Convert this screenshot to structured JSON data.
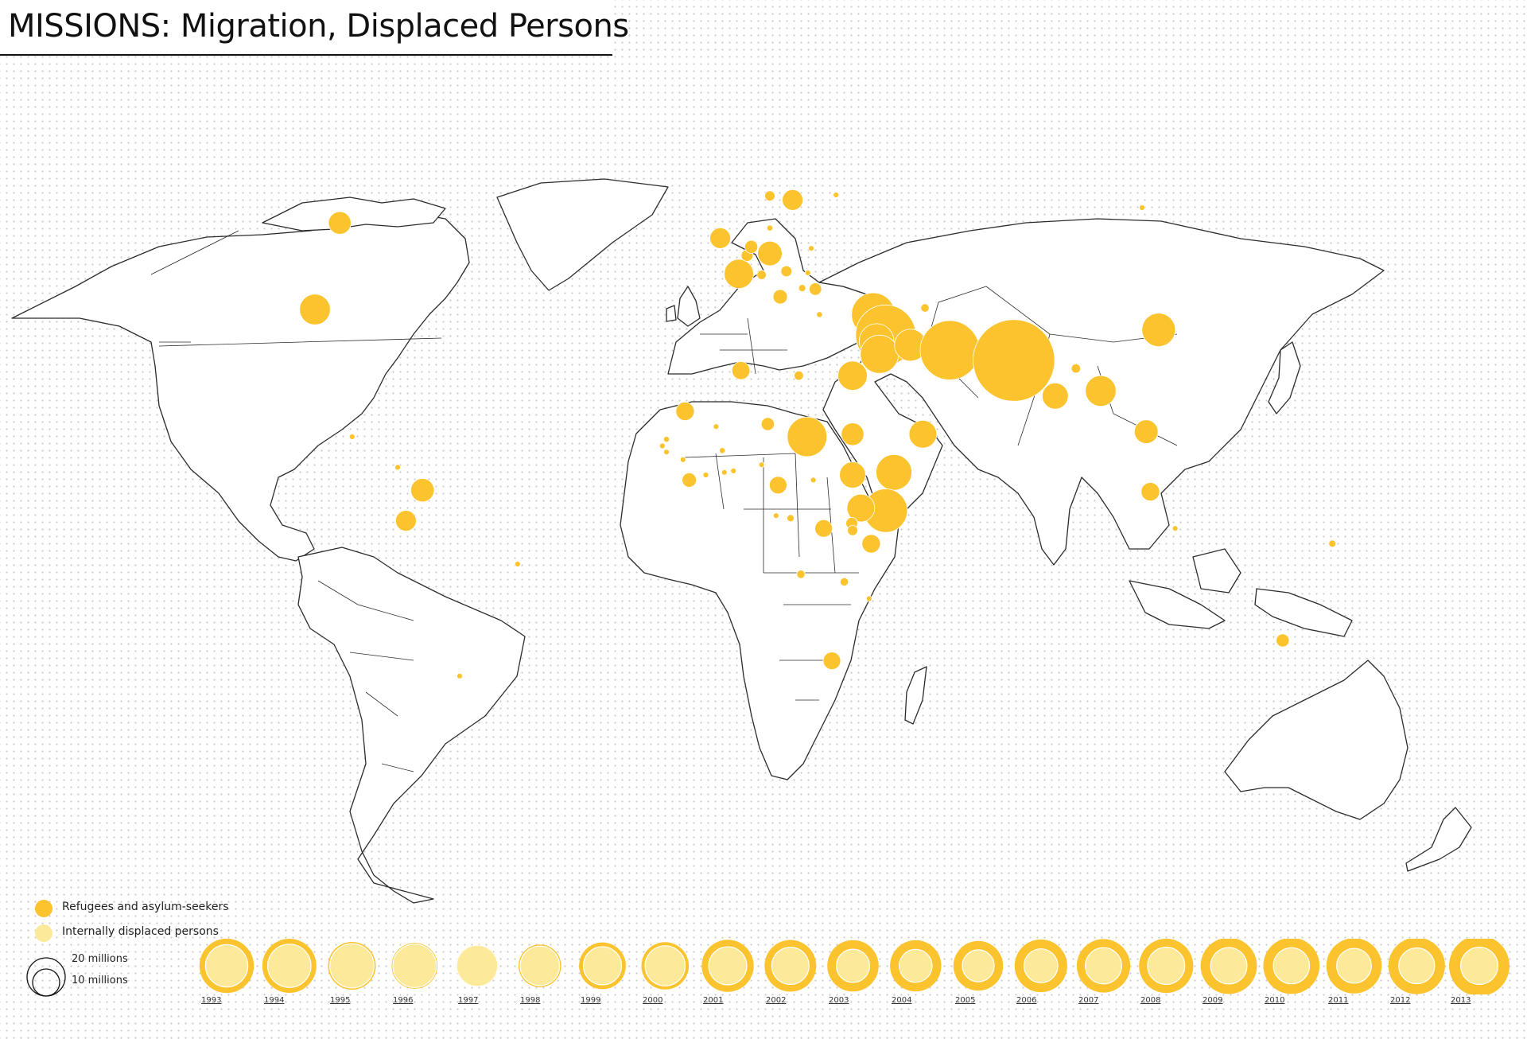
{
  "title": "MISSIONS: Migration, Displaced Persons",
  "colors": {
    "refugees": "#fbc32d",
    "idp": "#fde99a",
    "land": "#ffffff",
    "outline": "#2b2b2b"
  },
  "legend": {
    "refugees_label": "Refugees and asylum-seekers",
    "idp_label": "Internally displaced persons",
    "scale_large": "20 millions",
    "scale_small": "10 millions"
  },
  "country_bubbles": [
    {
      "name": "Canada",
      "lon": -94,
      "lat": 57,
      "value": 0.3
    },
    {
      "name": "United States",
      "lon": -100,
      "lat": 40,
      "value": 0.55
    },
    {
      "name": "Colombia",
      "lon": -74,
      "lat": 4.5,
      "value": 0.32
    },
    {
      "name": "Ecuador",
      "lon": -78,
      "lat": -1.5,
      "value": 0.25
    },
    {
      "name": "Brazil",
      "lon": -51,
      "lat": -10,
      "value": 0.01
    },
    {
      "name": "Argentina",
      "lon": -65,
      "lat": -32,
      "value": 0.01
    },
    {
      "name": "Guatemala",
      "lon": -91,
      "lat": 15,
      "value": 0.01
    },
    {
      "name": "Panama",
      "lon": -80,
      "lat": 9,
      "value": 0.01
    },
    {
      "name": "United Kingdom",
      "lon": -2,
      "lat": 54,
      "value": 0.25
    },
    {
      "name": "France",
      "lon": 2.5,
      "lat": 47,
      "value": 0.5
    },
    {
      "name": "Belgium",
      "lon": 4.5,
      "lat": 50.6,
      "value": 0.08
    },
    {
      "name": "Netherlands",
      "lon": 5.5,
      "lat": 52.3,
      "value": 0.1
    },
    {
      "name": "Germany",
      "lon": 10,
      "lat": 51,
      "value": 0.35
    },
    {
      "name": "Switzerland",
      "lon": 8,
      "lat": 46.8,
      "value": 0.05
    },
    {
      "name": "Austria",
      "lon": 14,
      "lat": 47.5,
      "value": 0.07
    },
    {
      "name": "Italy",
      "lon": 12.5,
      "lat": 42.5,
      "value": 0.12
    },
    {
      "name": "Serbia",
      "lon": 21,
      "lat": 44,
      "value": 0.09
    },
    {
      "name": "Sweden",
      "lon": 15.5,
      "lat": 61.5,
      "value": 0.25
    },
    {
      "name": "Norway",
      "lon": 10,
      "lat": 62.3,
      "value": 0.06
    },
    {
      "name": "Finland",
      "lon": 26,
      "lat": 62.5,
      "value": 0.01
    },
    {
      "name": "Poland",
      "lon": 20,
      "lat": 52,
      "value": 0.01
    },
    {
      "name": "Denmark",
      "lon": 10,
      "lat": 56,
      "value": 0.02
    },
    {
      "name": "Hungary",
      "lon": 19.2,
      "lat": 47.2,
      "value": 0.01
    },
    {
      "name": "Bosnia",
      "lon": 17.8,
      "lat": 44.2,
      "value": 0.03
    },
    {
      "name": "Greece",
      "lon": 22,
      "lat": 39,
      "value": 0.02
    },
    {
      "name": "Russia",
      "lon": 100,
      "lat": 60,
      "value": 0.01
    },
    {
      "name": "Turkey",
      "lon": 35,
      "lat": 39,
      "value": 1.1
    },
    {
      "name": "Syria",
      "lon": 38,
      "lat": 35,
      "value": 2.1
    },
    {
      "name": "Lebanon",
      "lon": 35.8,
      "lat": 33.8,
      "value": 0.7
    },
    {
      "name": "Jordan",
      "lon": 36.5,
      "lat": 31.2,
      "value": 0.85
    },
    {
      "name": "Iraq",
      "lon": 44,
      "lat": 33,
      "value": 0.6
    },
    {
      "name": "Azerbaijan",
      "lon": 47.5,
      "lat": 40.3,
      "value": 0.04
    },
    {
      "name": "Iran",
      "lon": 53.5,
      "lat": 32,
      "value": 2.05
    },
    {
      "name": "Afghanistan",
      "lon": 66,
      "lat": 34,
      "value": 0.01
    },
    {
      "name": "Pakistan",
      "lon": 69,
      "lat": 30,
      "value": 3.9
    },
    {
      "name": "India",
      "lon": 79,
      "lat": 23,
      "value": 0.4
    },
    {
      "name": "Nepal",
      "lon": 84,
      "lat": 28.4,
      "value": 0.05
    },
    {
      "name": "Bangladesh",
      "lon": 90,
      "lat": 24,
      "value": 0.55
    },
    {
      "name": "China",
      "lon": 104,
      "lat": 36,
      "value": 0.65
    },
    {
      "name": "Thailand",
      "lon": 101,
      "lat": 16,
      "value": 0.33
    },
    {
      "name": "Malaysia",
      "lon": 102,
      "lat": 4.2,
      "value": 0.2
    },
    {
      "name": "Indonesia",
      "lon": 108,
      "lat": -3,
      "value": 0.01
    },
    {
      "name": "Papua New Guinea",
      "lon": 146,
      "lat": -6,
      "value": 0.03
    },
    {
      "name": "Australia",
      "lon": 134,
      "lat": -25,
      "value": 0.1
    },
    {
      "name": "Egypt",
      "lon": 30,
      "lat": 27,
      "value": 0.5
    },
    {
      "name": "Libya",
      "lon": 17,
      "lat": 27,
      "value": 0.05
    },
    {
      "name": "Algeria",
      "lon": 3,
      "lat": 28,
      "value": 0.19
    },
    {
      "name": "Mauritania",
      "lon": -10.5,
      "lat": 20,
      "value": 0.2
    },
    {
      "name": "Mali",
      "lon": -3,
      "lat": 17,
      "value": 0.01
    },
    {
      "name": "Niger",
      "lon": 9.5,
      "lat": 17.5,
      "value": 0.1
    },
    {
      "name": "Chad",
      "lon": 19,
      "lat": 15,
      "value": 0.92
    },
    {
      "name": "Sudan",
      "lon": 30,
      "lat": 15.5,
      "value": 0.3
    },
    {
      "name": "Yemen",
      "lon": 47,
      "lat": 15.5,
      "value": 0.45
    },
    {
      "name": "Ethiopia",
      "lon": 40,
      "lat": 8,
      "value": 0.75
    },
    {
      "name": "South Sudan",
      "lon": 30,
      "lat": 7.5,
      "value": 0.4
    },
    {
      "name": "Kenya",
      "lon": 38,
      "lat": 0.5,
      "value": 1.1
    },
    {
      "name": "Uganda",
      "lon": 32,
      "lat": 1,
      "value": 0.45
    },
    {
      "name": "Cameroon",
      "lon": 12,
      "lat": 5.5,
      "value": 0.18
    },
    {
      "name": "Central African Republic",
      "lon": 20.5,
      "lat": 6.5,
      "value": 0.01
    },
    {
      "name": "Congo",
      "lon": 15,
      "lat": -1,
      "value": 0.03
    },
    {
      "name": "Gabon",
      "lon": 11.5,
      "lat": -0.5,
      "value": 0.01
    },
    {
      "name": "DR Congo",
      "lon": 23,
      "lat": -3,
      "value": 0.18
    },
    {
      "name": "Rwanda",
      "lon": 29.8,
      "lat": -2,
      "value": 0.08
    },
    {
      "name": "Burundi",
      "lon": 30,
      "lat": -3.4,
      "value": 0.06
    },
    {
      "name": "Tanzania",
      "lon": 34.5,
      "lat": -6,
      "value": 0.2
    },
    {
      "name": "Angola",
      "lon": 17.5,
      "lat": -12,
      "value": 0.04
    },
    {
      "name": "Zambia",
      "lon": 28,
      "lat": -13.5,
      "value": 0.04
    },
    {
      "name": "Malawi",
      "lon": 34,
      "lat": -16.8,
      "value": 0.01
    },
    {
      "name": "South Africa",
      "lon": 25,
      "lat": -29,
      "value": 0.18
    },
    {
      "name": "Senegal",
      "lon": -15,
      "lat": 14.5,
      "value": 0.02
    },
    {
      "name": "Gambia",
      "lon": -16,
      "lat": 13.2,
      "value": 0.01
    },
    {
      "name": "Guinea-Bissau",
      "lon": -15,
      "lat": 12,
      "value": 0.01
    },
    {
      "name": "Guinea",
      "lon": -11,
      "lat": 10.5,
      "value": 0.01
    },
    {
      "name": "Liberia",
      "lon": -9.5,
      "lat": 6.5,
      "value": 0.12
    },
    {
      "name": "Ivory Coast",
      "lon": -5.5,
      "lat": 7.5,
      "value": 0.01
    },
    {
      "name": "Ghana",
      "lon": -1,
      "lat": 8,
      "value": 0.01
    },
    {
      "name": "Burkina Faso",
      "lon": -1.5,
      "lat": 12.3,
      "value": 0.02
    },
    {
      "name": "Nigeria",
      "lon": 8,
      "lat": 9.5,
      "value": 0.01
    },
    {
      "name": "Togo",
      "lon": 1.2,
      "lat": 8.3,
      "value": 0.01
    }
  ],
  "timeline": [
    {
      "year": "1993",
      "refugees": 18.2,
      "idp": 11.0
    },
    {
      "year": "1994",
      "refugees": 18.0,
      "idp": 11.5
    },
    {
      "year": "1995",
      "refugees": 14.0,
      "idp": 12.0
    },
    {
      "year": "1996",
      "refugees": 12.9,
      "idp": 11.6
    },
    {
      "year": "1997",
      "refugees": 10.8,
      "idp": 10.4
    },
    {
      "year": "1998",
      "refugees": 11.2,
      "idp": 9.6
    },
    {
      "year": "1999",
      "refugees": 13.5,
      "idp": 9.0
    },
    {
      "year": "2000",
      "refugees": 13.8,
      "idp": 9.9
    },
    {
      "year": "2001",
      "refugees": 16.7,
      "idp": 8.9
    },
    {
      "year": "2002",
      "refugees": 16.5,
      "idp": 8.5
    },
    {
      "year": "2003",
      "refugees": 16.3,
      "idp": 6.8
    },
    {
      "year": "2004",
      "refugees": 16.2,
      "idp": 6.7
    },
    {
      "year": "2005",
      "refugees": 15.2,
      "idp": 6.3
    },
    {
      "year": "2006",
      "refugees": 17.1,
      "idp": 7.1
    },
    {
      "year": "2007",
      "refugees": 17.6,
      "idp": 8.1
    },
    {
      "year": "2008",
      "refugees": 18.1,
      "idp": 8.5
    },
    {
      "year": "2009",
      "refugees": 19.5,
      "idp": 8.2
    },
    {
      "year": "2010",
      "refugees": 19.5,
      "idp": 8.0
    },
    {
      "year": "2011",
      "refugees": 18.9,
      "idp": 7.4
    },
    {
      "year": "2012",
      "refugees": 19.8,
      "idp": 7.9
    },
    {
      "year": "2013",
      "refugees": 22.5,
      "idp": 8.5
    }
  ]
}
